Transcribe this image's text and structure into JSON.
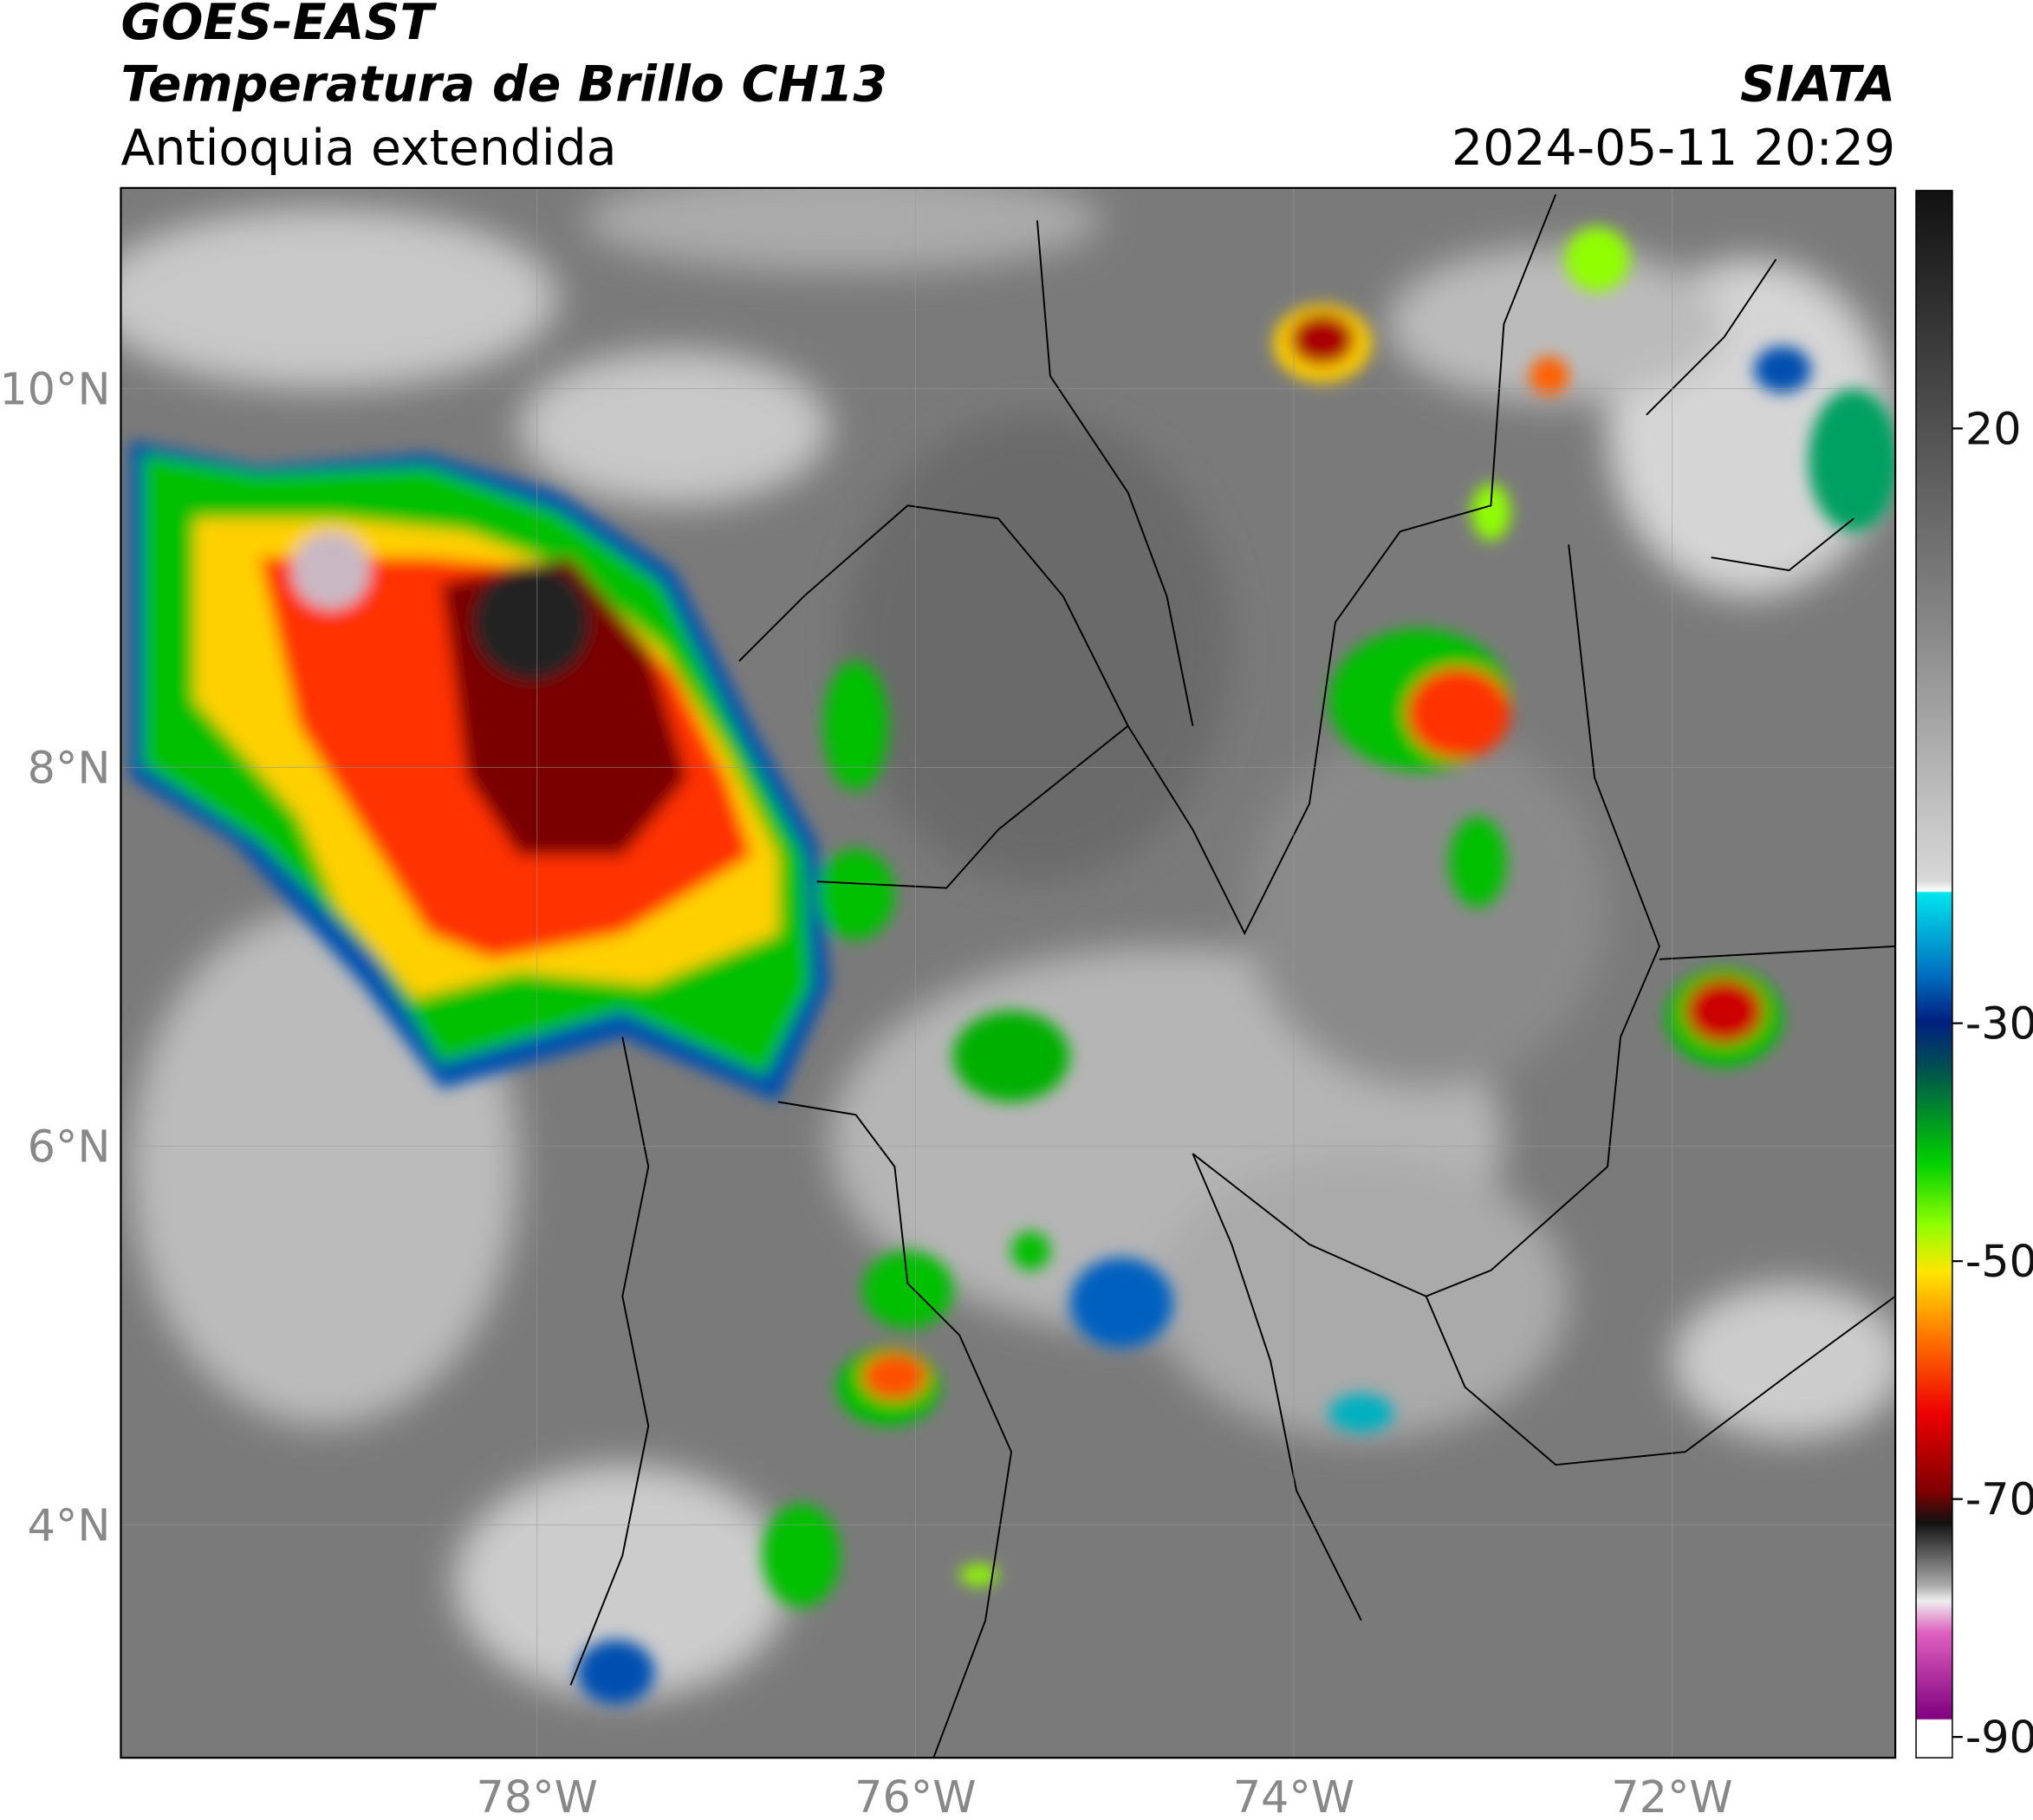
{
  "header": {
    "product": "GOES-EAST",
    "title": "Temperatura de Brillo CH13",
    "region": "Antioquia extendida",
    "source": "SIATA",
    "datetime": "2024-05-11 20:29"
  },
  "map": {
    "xlim": [
      -80.2,
      -70.82
    ],
    "ylim": [
      2.77,
      11.06
    ],
    "xticks": [
      {
        "value": -78,
        "label": "78°W"
      },
      {
        "value": -76,
        "label": "76°W"
      },
      {
        "value": -74,
        "label": "74°W"
      },
      {
        "value": -72,
        "label": "72°W"
      }
    ],
    "yticks": [
      {
        "value": 4,
        "label": "4°N"
      },
      {
        "value": 6,
        "label": "6°N"
      },
      {
        "value": 8,
        "label": "8°N"
      },
      {
        "value": 10,
        "label": "10°N"
      }
    ]
  },
  "colorbar": {
    "clim": [
      -91.75,
      40
    ],
    "ticks": [
      20,
      -30,
      -50,
      -70,
      -90
    ]
  }
}
